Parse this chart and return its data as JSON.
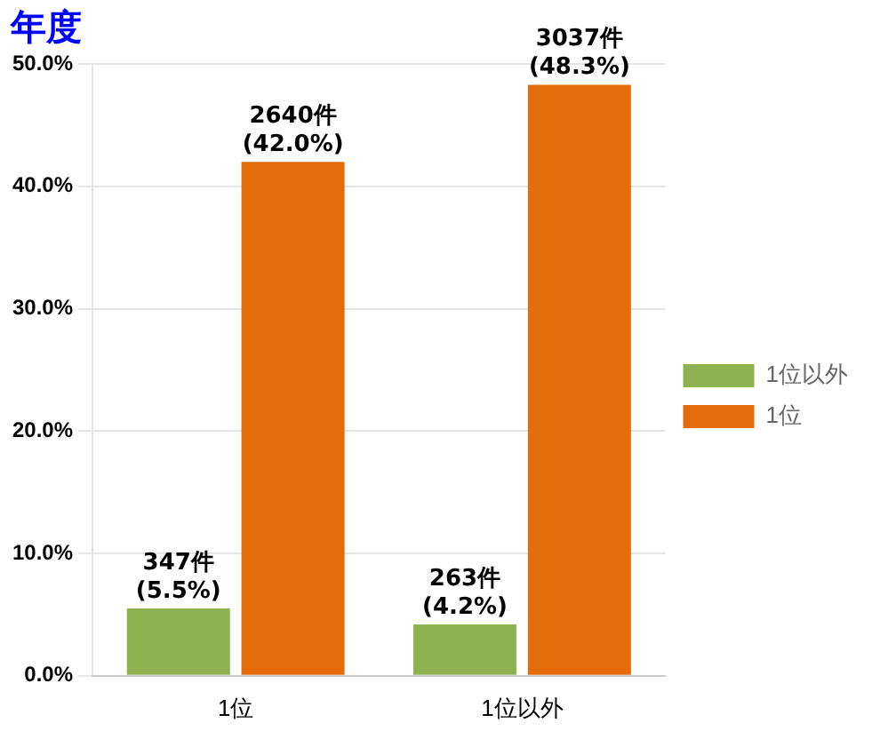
{
  "chart_data": {
    "type": "bar",
    "title": "年度",
    "categories": [
      "1位",
      "1位以外"
    ],
    "series": [
      {
        "name": "1位以外",
        "color": "#8db350",
        "values": [
          5.5,
          4.2
        ],
        "value_labels": [
          "347件\n(5.5%)",
          "263件\n(4.2%)"
        ]
      },
      {
        "name": "1位",
        "color": "#e46c0a",
        "values": [
          42.0,
          48.3
        ],
        "value_labels": [
          "2640件\n(42.0%)",
          "3037件\n(48.3%)"
        ]
      }
    ],
    "ylim": [
      0,
      50
    ],
    "yticks": [
      {
        "value": 0,
        "label": "0.0%"
      },
      {
        "value": 10,
        "label": "10.0%"
      },
      {
        "value": 20,
        "label": "20.0%"
      },
      {
        "value": 30,
        "label": "30.0%"
      },
      {
        "value": 40,
        "label": "40.0%"
      },
      {
        "value": 50,
        "label": "50.0%"
      }
    ],
    "grid": "y",
    "legend": "right"
  }
}
